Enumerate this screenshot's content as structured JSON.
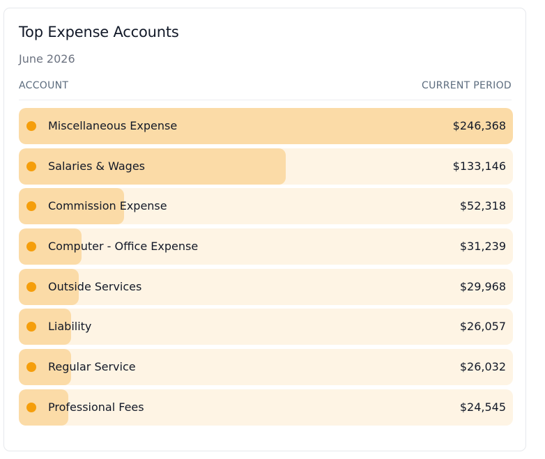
{
  "card": {
    "title": "Top Expense Accounts",
    "subtitle": "June 2026",
    "col_account": "ACCOUNT",
    "col_period": "CURRENT PERIOD"
  },
  "colors": {
    "bar_fill": "#fbdba7",
    "bar_track": "#fef4e4",
    "dot": "#f59e0b"
  },
  "chart_data": {
    "type": "bar",
    "orientation": "horizontal",
    "categories": [
      "Miscellaneous Expense",
      "Salaries & Wages",
      "Commission Expense",
      "Computer - Office Expense",
      "Outside Services",
      "Liability",
      "Regular Service",
      "Professional Fees"
    ],
    "values": [
      246368,
      133146,
      52318,
      31239,
      29968,
      26057,
      26032,
      24545
    ],
    "value_labels": [
      "$246,368",
      "$133,146",
      "$52,318",
      "$31,239",
      "$29,968",
      "$26,057",
      "$26,032",
      "$24,545"
    ],
    "xlim": [
      0,
      246368
    ]
  }
}
